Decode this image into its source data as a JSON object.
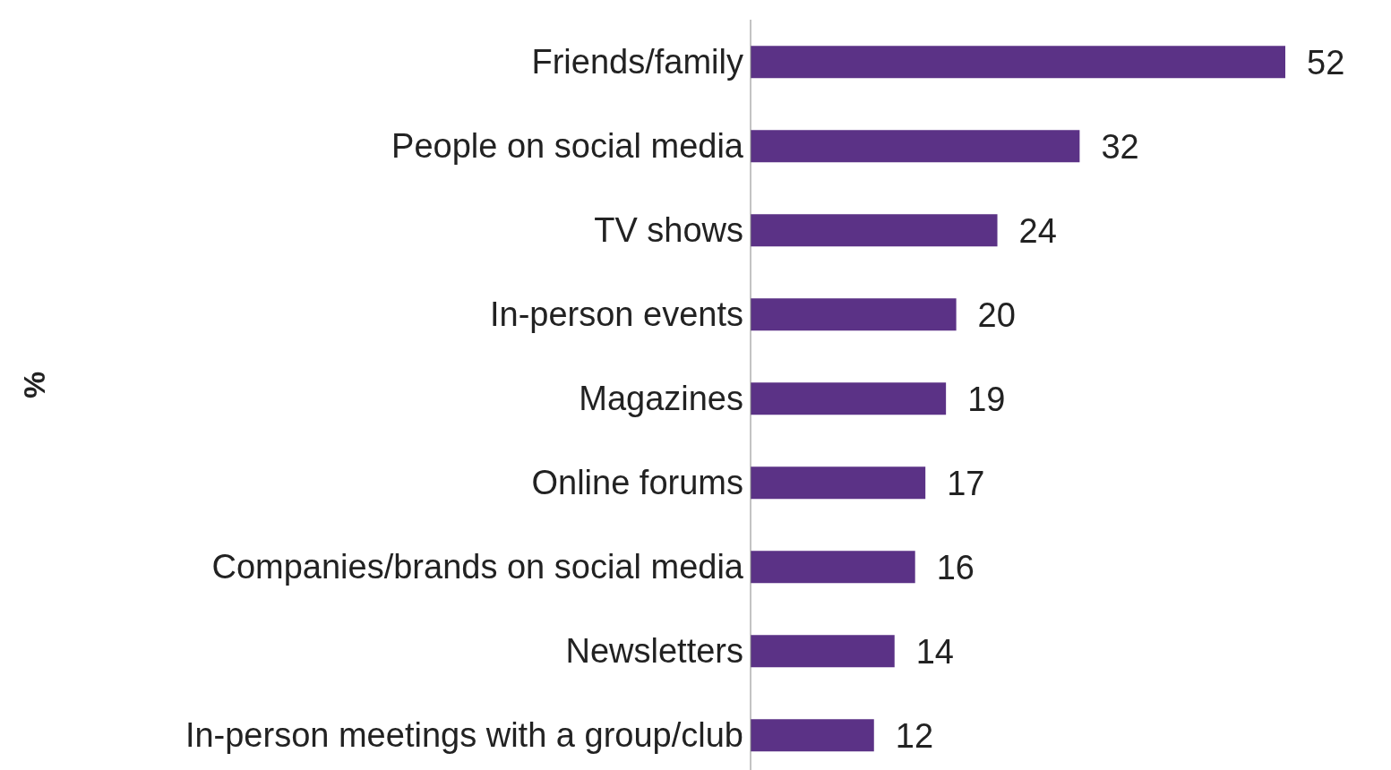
{
  "chart_data": {
    "type": "bar",
    "orientation": "horizontal",
    "ylabel": "%",
    "categories": [
      "Friends/family",
      "People on social media",
      "TV shows",
      "In-person events",
      "Magazines",
      "Online forums",
      "Companies/brands on social media",
      "Newsletters",
      "In-person meetings with a group/club"
    ],
    "values": [
      52,
      32,
      24,
      20,
      19,
      17,
      16,
      14,
      12
    ],
    "color": "#5b3286",
    "data_labels": true
  }
}
